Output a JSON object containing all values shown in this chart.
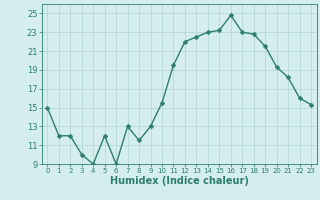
{
  "x": [
    0,
    1,
    2,
    3,
    4,
    5,
    6,
    7,
    8,
    9,
    10,
    11,
    12,
    13,
    14,
    15,
    16,
    17,
    18,
    19,
    20,
    21,
    22,
    23
  ],
  "y": [
    15,
    12,
    12,
    10,
    9,
    12,
    9,
    13,
    11.5,
    13,
    15.5,
    19.5,
    22,
    22.5,
    23,
    23.2,
    24.8,
    23,
    22.8,
    21.5,
    19.3,
    18.2,
    16,
    15.3
  ],
  "line_color": "#2e7d6e",
  "marker": "D",
  "marker_size": 2.5,
  "line_width": 1.0,
  "bg_color": "#d4eeee",
  "grid_color": "#b8d8d8",
  "xlabel": "Humidex (Indice chaleur)",
  "xlim": [
    -0.5,
    23.5
  ],
  "ylim": [
    9,
    26
  ],
  "yticks": [
    9,
    11,
    13,
    15,
    17,
    19,
    21,
    23,
    25
  ],
  "xticks": [
    0,
    1,
    2,
    3,
    4,
    5,
    6,
    7,
    8,
    9,
    10,
    11,
    12,
    13,
    14,
    15,
    16,
    17,
    18,
    19,
    20,
    21,
    22,
    23
  ],
  "tick_color": "#2e7d6e",
  "label_color": "#2e7d6e",
  "xlabel_fontsize": 7.0,
  "tick_fontsize": 6.0
}
